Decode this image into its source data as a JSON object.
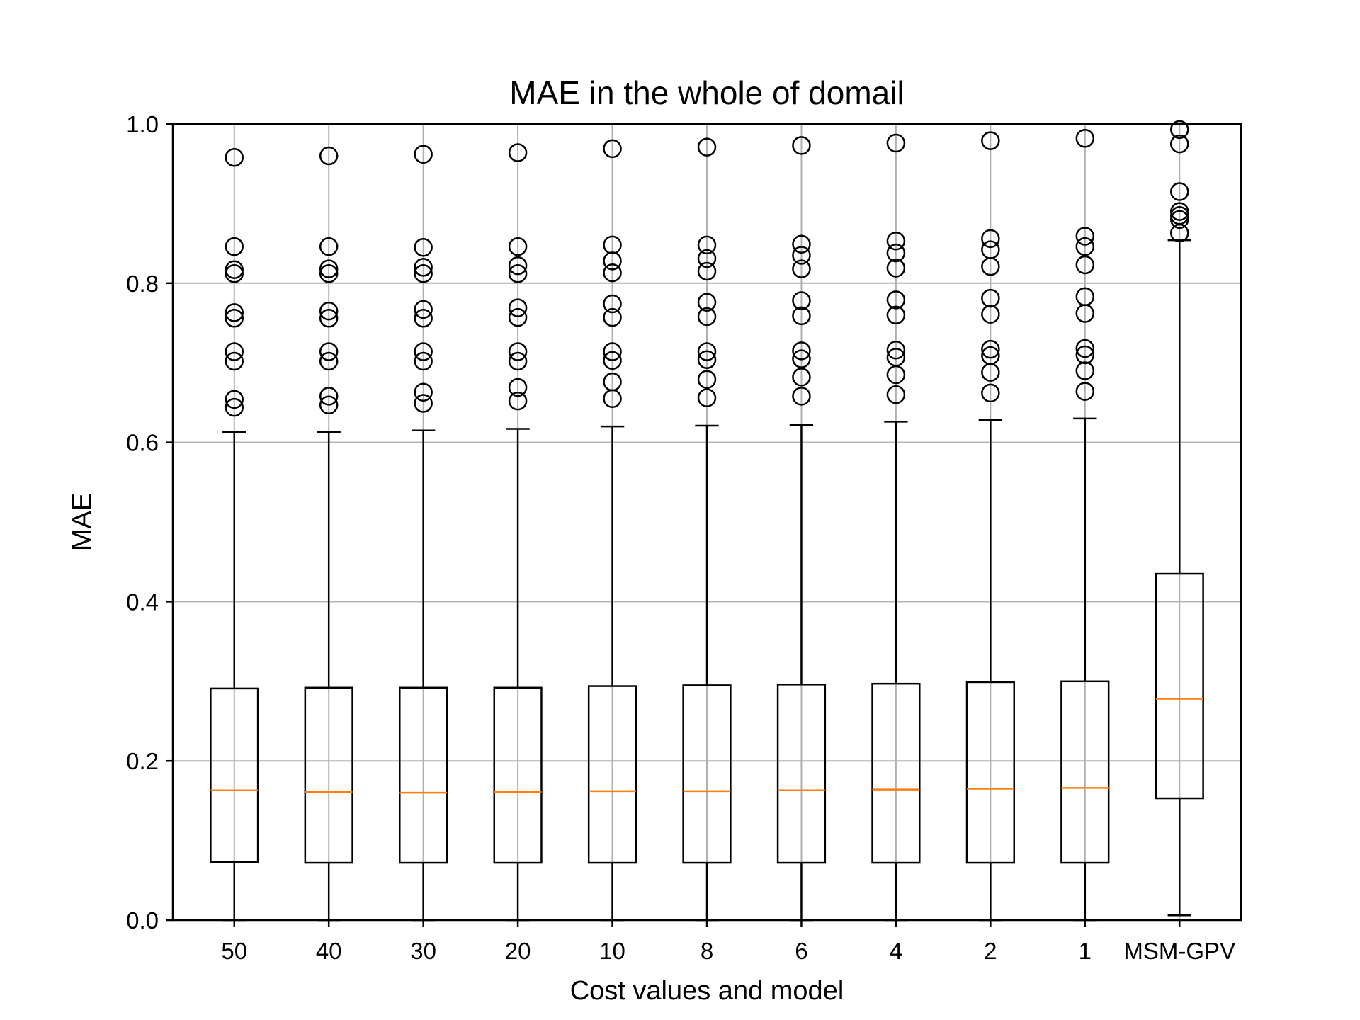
{
  "chart_data": {
    "type": "box",
    "title": "MAE in the whole of domail",
    "xlabel": "Cost values and model",
    "ylabel": "MAE",
    "ylim": [
      0,
      1.0
    ],
    "yticks": [
      "0.0",
      "0.2",
      "0.4",
      "0.6",
      "0.8",
      "1.0"
    ],
    "grid": true,
    "colors": {
      "box": "#000000",
      "median": "#ff7f0e",
      "grid": "#b0b0b0"
    },
    "categories": [
      "50",
      "40",
      "30",
      "20",
      "10",
      "8",
      "6",
      "4",
      "2",
      "1",
      "MSM-GPV"
    ],
    "boxes": [
      {
        "whislo": 0.0,
        "q1": 0.073,
        "med": 0.163,
        "q3": 0.291,
        "whishi": 0.613,
        "fliers": [
          0.644,
          0.654,
          0.702,
          0.714,
          0.756,
          0.763,
          0.812,
          0.817,
          0.846,
          0.958
        ]
      },
      {
        "whislo": 0.0,
        "q1": 0.072,
        "med": 0.161,
        "q3": 0.292,
        "whishi": 0.613,
        "fliers": [
          0.647,
          0.658,
          0.702,
          0.714,
          0.756,
          0.765,
          0.812,
          0.818,
          0.846,
          0.96
        ]
      },
      {
        "whislo": 0.0,
        "q1": 0.072,
        "med": 0.16,
        "q3": 0.292,
        "whishi": 0.615,
        "fliers": [
          0.649,
          0.663,
          0.702,
          0.714,
          0.756,
          0.767,
          0.812,
          0.82,
          0.845,
          0.962
        ]
      },
      {
        "whislo": 0.0,
        "q1": 0.072,
        "med": 0.161,
        "q3": 0.292,
        "whishi": 0.617,
        "fliers": [
          0.652,
          0.669,
          0.702,
          0.714,
          0.757,
          0.769,
          0.812,
          0.822,
          0.846,
          0.964
        ]
      },
      {
        "whislo": 0.0,
        "q1": 0.072,
        "med": 0.162,
        "q3": 0.294,
        "whishi": 0.62,
        "fliers": [
          0.655,
          0.676,
          0.703,
          0.714,
          0.757,
          0.774,
          0.813,
          0.828,
          0.848,
          0.969
        ]
      },
      {
        "whislo": 0.0,
        "q1": 0.072,
        "med": 0.162,
        "q3": 0.295,
        "whishi": 0.621,
        "fliers": [
          0.656,
          0.679,
          0.704,
          0.714,
          0.758,
          0.776,
          0.815,
          0.831,
          0.848,
          0.971
        ]
      },
      {
        "whislo": 0.0,
        "q1": 0.072,
        "med": 0.163,
        "q3": 0.296,
        "whishi": 0.622,
        "fliers": [
          0.658,
          0.682,
          0.705,
          0.715,
          0.759,
          0.778,
          0.818,
          0.835,
          0.849,
          0.973
        ]
      },
      {
        "whislo": 0.0,
        "q1": 0.072,
        "med": 0.164,
        "q3": 0.297,
        "whishi": 0.626,
        "fliers": [
          0.66,
          0.685,
          0.707,
          0.716,
          0.76,
          0.779,
          0.819,
          0.838,
          0.853,
          0.976
        ]
      },
      {
        "whislo": 0.0,
        "q1": 0.072,
        "med": 0.165,
        "q3": 0.299,
        "whishi": 0.628,
        "fliers": [
          0.662,
          0.688,
          0.709,
          0.717,
          0.761,
          0.781,
          0.821,
          0.842,
          0.856,
          0.979
        ]
      },
      {
        "whislo": 0.0,
        "q1": 0.072,
        "med": 0.166,
        "q3": 0.3,
        "whishi": 0.63,
        "fliers": [
          0.664,
          0.69,
          0.71,
          0.718,
          0.762,
          0.783,
          0.823,
          0.846,
          0.859,
          0.982
        ]
      },
      {
        "whislo": 0.006,
        "q1": 0.153,
        "med": 0.278,
        "q3": 0.435,
        "whishi": 0.854,
        "fliers": [
          0.863,
          0.88,
          0.885,
          0.89,
          0.915,
          0.975,
          0.993
        ]
      }
    ]
  }
}
